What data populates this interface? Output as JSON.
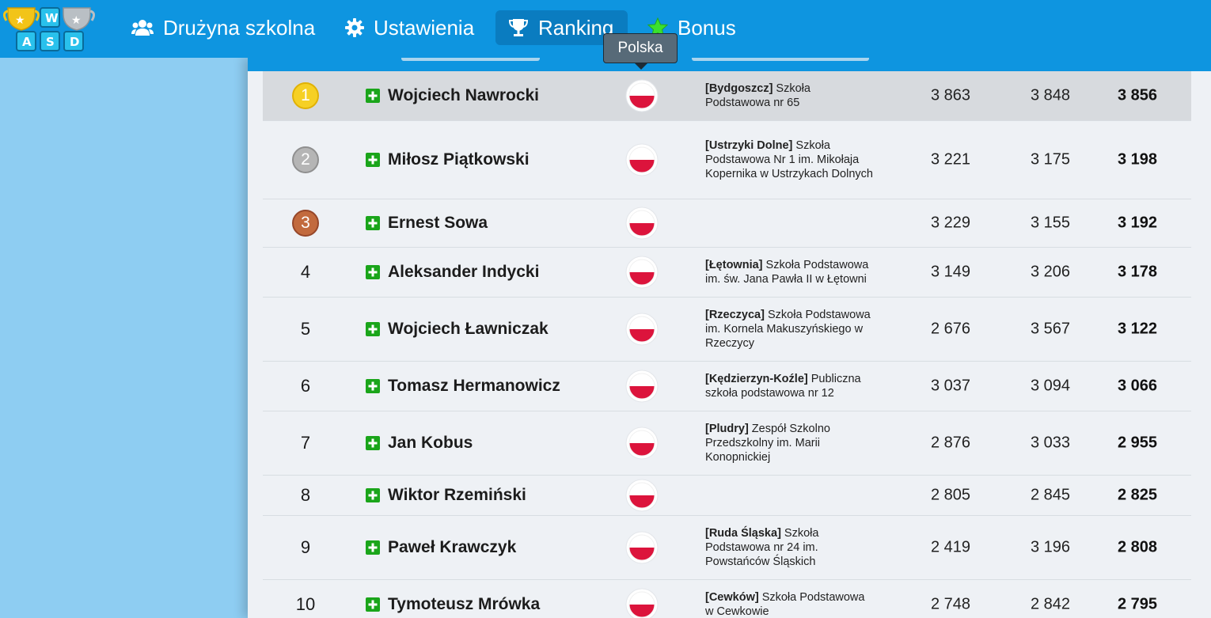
{
  "nav": {
    "logo_letters": [
      "W",
      "A",
      "S",
      "D"
    ],
    "items": [
      {
        "label": "Drużyna szkolna",
        "icon": "users-icon"
      },
      {
        "label": "Ustawienia",
        "icon": "gear-icon"
      },
      {
        "label": "Ranking",
        "icon": "trophy-icon",
        "active": true
      },
      {
        "label": "Bonus",
        "icon": "star-icon"
      }
    ]
  },
  "tooltip": {
    "text": "Polska"
  },
  "colors": {
    "nav_bg": "#0e95e0",
    "page_bg": "#8ecdf2",
    "plus": "#1aa51a",
    "flag_red": "#dc143c"
  },
  "rows": [
    {
      "rank": "1",
      "medal": "gold",
      "name": "Wojciech Nawrocki",
      "city": "[Bydgoszcz]",
      "school": " Szkoła Podstawowa nr 65",
      "s1": "3 863",
      "s2": "3 848",
      "total": "3 856"
    },
    {
      "rank": "2",
      "medal": "silver",
      "name": "Miłosz Piątkowski",
      "city": "[Ustrzyki Dolne]",
      "school": " Szkoła Podstawowa Nr 1 im. Mikołaja Kopernika w Ustrzykach Dolnych",
      "s1": "3 221",
      "s2": "3 175",
      "total": "3 198"
    },
    {
      "rank": "3",
      "medal": "bronze",
      "name": "Ernest Sowa",
      "city": "",
      "school": "",
      "s1": "3 229",
      "s2": "3 155",
      "total": "3 192"
    },
    {
      "rank": "4",
      "medal": "",
      "name": "Aleksander Indycki",
      "city": "[Łętownia]",
      "school": " Szkoła Podstawowa im. św. Jana Pawła II w Łętowni",
      "s1": "3 149",
      "s2": "3 206",
      "total": "3 178"
    },
    {
      "rank": "5",
      "medal": "",
      "name": "Wojciech Ławniczak",
      "city": "[Rzeczyca]",
      "school": " Szkoła Podstawowa im. Kornela Makuszyńskiego w Rzeczycy",
      "s1": "2 676",
      "s2": "3 567",
      "total": "3 122"
    },
    {
      "rank": "6",
      "medal": "",
      "name": "Tomasz Hermanowicz",
      "city": "[Kędzierzyn-Koźle]",
      "school": " Publiczna szkoła podstawowa nr 12",
      "s1": "3 037",
      "s2": "3 094",
      "total": "3 066"
    },
    {
      "rank": "7",
      "medal": "",
      "name": "Jan Kobus",
      "city": "[Pludry]",
      "school": " Zespół Szkolno Przedszkolny im. Marii Konopnickiej",
      "s1": "2 876",
      "s2": "3 033",
      "total": "2 955"
    },
    {
      "rank": "8",
      "medal": "",
      "name": "Wiktor Rzemiński",
      "city": "",
      "school": "",
      "s1": "2 805",
      "s2": "2 845",
      "total": "2 825"
    },
    {
      "rank": "9",
      "medal": "",
      "name": "Paweł Krawczyk",
      "city": "[Ruda Śląska]",
      "school": " Szkoła Podstawowa nr 24 im. Powstańców Śląskich",
      "s1": "2 419",
      "s2": "3 196",
      "total": "2 808"
    },
    {
      "rank": "10",
      "medal": "",
      "name": "Tymoteusz Mrówka",
      "city": "[Cewków]",
      "school": " Szkoła Podstawowa w Cewkowie",
      "s1": "2 748",
      "s2": "2 842",
      "total": "2 795"
    }
  ]
}
